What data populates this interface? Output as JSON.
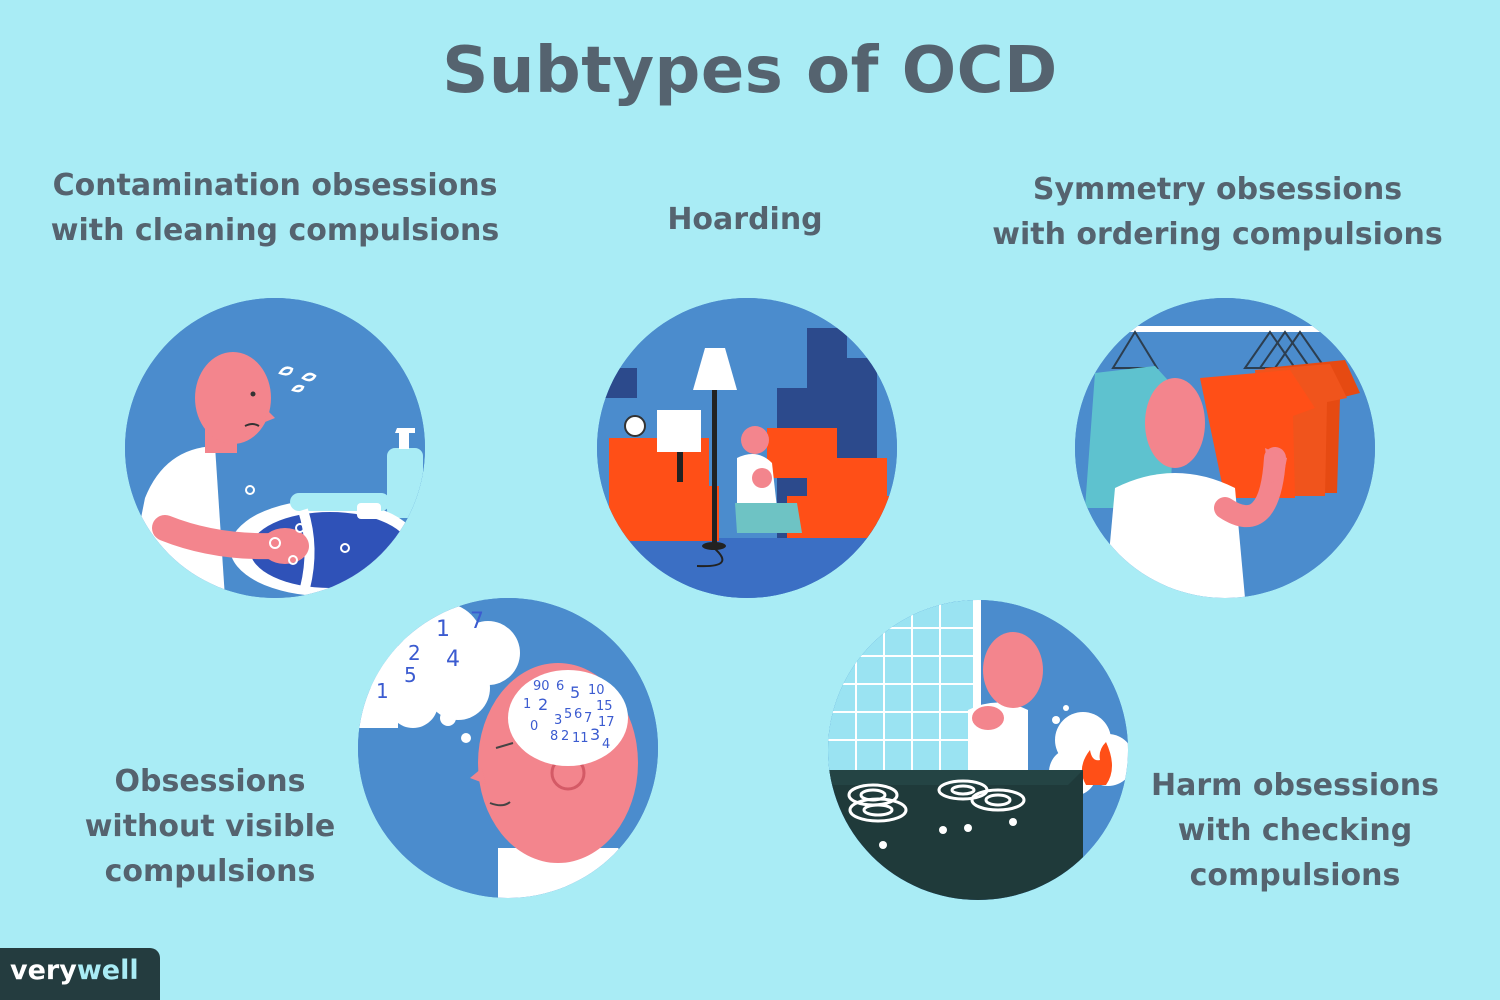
{
  "title": "Subtypes of OCD",
  "subtypes": [
    {
      "lines": [
        "Contamination obsessions",
        "with cleaning compulsions"
      ]
    },
    {
      "lines": [
        "Hoarding"
      ]
    },
    {
      "lines": [
        "Symmetry obsessions",
        "with ordering compulsions"
      ]
    },
    {
      "lines": [
        "Obsessions",
        "without visible",
        "compulsions"
      ]
    },
    {
      "lines": [
        "Harm obsessions",
        "with checking",
        "compulsions"
      ]
    }
  ],
  "thought_numbers": [
    "7",
    "1",
    "2",
    "4",
    "1",
    "5"
  ],
  "brain_numbers": [
    "90",
    "6",
    "5",
    "10",
    "1",
    "2",
    "15",
    "3",
    "5",
    "6",
    "7",
    "17",
    "0",
    "8",
    "2",
    "11",
    "3",
    "4"
  ],
  "logo": {
    "part1": "very",
    "part2": "well"
  },
  "colors": {
    "background": "#a9ecf5",
    "text": "#55636f",
    "circle_blue": "#4b8ccd",
    "skin": "#f3858d",
    "orange": "#ff4f17",
    "logo_bg": "#243c3f"
  }
}
